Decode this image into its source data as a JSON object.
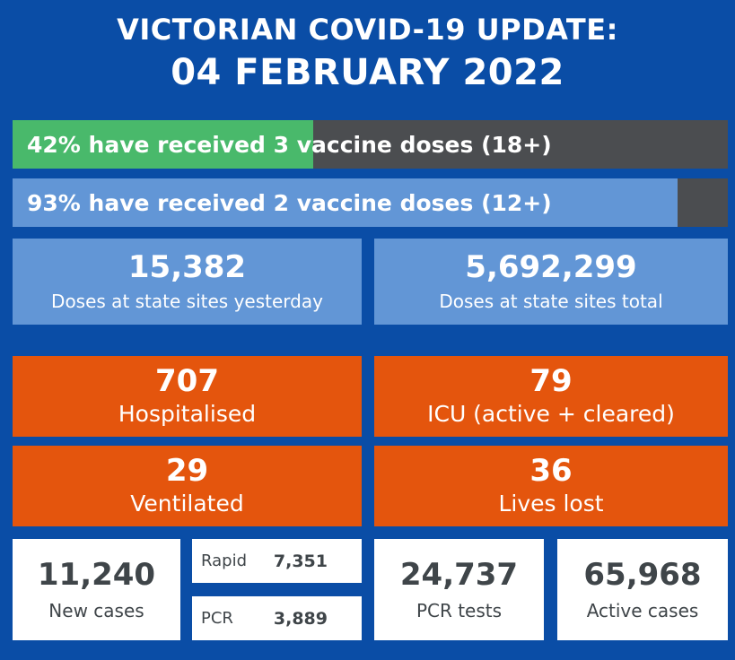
{
  "header": {
    "line1": "VICTORIAN COVID-19 UPDATE:",
    "line2": "04 FEBRUARY 2022"
  },
  "vaccination": {
    "third_dose": {
      "label": "42% have received 3 vaccine doses (18+)",
      "percent": 42,
      "fill_color": "#49b96b",
      "track_color": "#4b4d50"
    },
    "second_dose": {
      "label": "93% have received 2 vaccine doses (12+)",
      "percent": 93,
      "fill_color": "#6296d6",
      "track_color": "#4b4d50"
    }
  },
  "doses": {
    "yesterday": {
      "value": "15,382",
      "label": "Doses at state sites yesterday"
    },
    "total": {
      "value": "5,692,299",
      "label": "Doses at state sites total"
    }
  },
  "hospital": {
    "hospitalised": {
      "value": "707",
      "label": "Hospitalised"
    },
    "icu": {
      "value": "79",
      "label": "ICU (active + cleared)"
    },
    "ventilated": {
      "value": "29",
      "label": "Ventilated"
    },
    "lives_lost": {
      "value": "36",
      "label": "Lives lost"
    }
  },
  "cases": {
    "new_cases": {
      "value": "11,240",
      "label": "New cases"
    },
    "rapid": {
      "label": "Rapid",
      "value": "7,351"
    },
    "pcr": {
      "label": "PCR",
      "value": "3,889"
    },
    "pcr_tests": {
      "value": "24,737",
      "label": "PCR tests"
    },
    "active_cases": {
      "value": "65,968",
      "label": "Active cases"
    }
  },
  "colors": {
    "background": "#0a4da6",
    "orange": "#e4550d",
    "light_blue": "#6296d6",
    "green": "#49b96b"
  }
}
